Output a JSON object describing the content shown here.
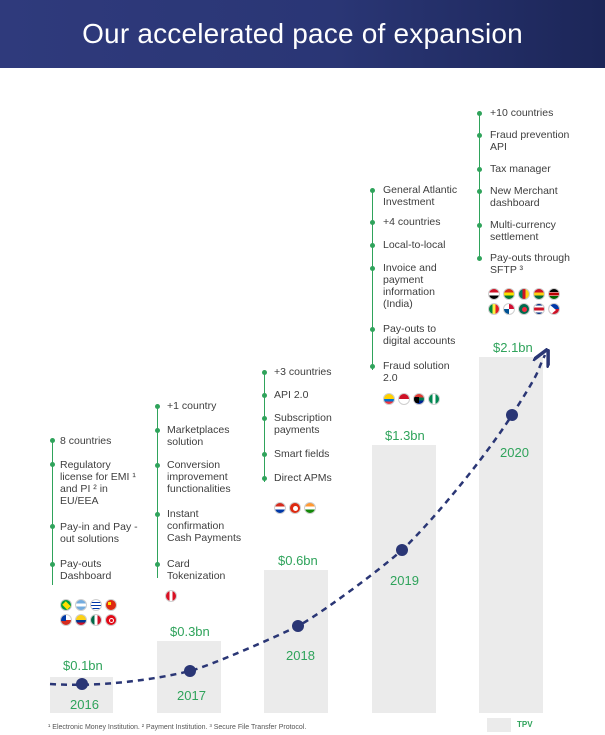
{
  "header": {
    "title": "Our accelerated pace of expansion"
  },
  "chart_data": {
    "type": "bar",
    "categories": [
      "2016",
      "2017",
      "2018",
      "2019",
      "2020"
    ],
    "values": [
      0.1,
      0.3,
      0.6,
      1.3,
      2.1
    ],
    "value_labels": [
      "$0.1bn",
      "$0.3bn",
      "$0.6bn",
      "$1.3bn",
      "$2.1bn"
    ],
    "series": [
      {
        "name": "TPV",
        "values": [
          0.1,
          0.3,
          0.6,
          1.3,
          2.1
        ]
      }
    ],
    "ylim": [
      0,
      2.1
    ],
    "trend_line": "dashed-arrow",
    "legend_position": "bottom-right",
    "colors": {
      "bar": "#ebebeb",
      "accent": "#2fa35b",
      "curve": "#2a3675"
    }
  },
  "milestones": [
    {
      "items": [
        "8 countries",
        "Regulatory license for EMI ¹ and PI ² in EU/EEA",
        "Pay-in and Pay - out solutions",
        "Pay-outs Dashboard"
      ],
      "flags": [
        "Brazil",
        "Argentina",
        "Uruguay",
        "China",
        "Chile",
        "Colombia",
        "Mexico",
        "Turkey"
      ]
    },
    {
      "items": [
        "+1 country",
        "Marketplaces solution",
        "Conversion improvement functionalities",
        "Instant confirmation Cash Payments",
        "Card Tokenization"
      ],
      "flags": [
        "Peru"
      ]
    },
    {
      "items": [
        "+3 countries",
        "API 2.0",
        "Subscription payments",
        "Smart fields",
        "Direct APMs"
      ],
      "flags": [
        "Paraguay",
        "Hong Kong",
        "India"
      ]
    },
    {
      "items": [
        "General Atlantic Investment",
        "+4 countries",
        "Local-to-local",
        "Invoice and payment information (India)",
        "Pay-outs to digital accounts",
        "Fraud solution 2.0"
      ],
      "flags": [
        "Ecuador",
        "Indonesia",
        "South Africa",
        "Nigeria"
      ]
    },
    {
      "items": [
        "+10 countries",
        "Fraud prevention API",
        "Tax manager",
        "New Merchant dashboard",
        "Multi-currency settlement",
        "Pay-outs through SFTP ³"
      ],
      "flags": [
        "Egypt",
        "Bolivia",
        "Cameroon",
        "Ghana",
        "Kenya",
        "Senegal",
        "Panama",
        "Bangladesh",
        "Costa Rica",
        "Philippines"
      ]
    }
  ],
  "footnote": "¹ Electronic Money Institution. ² Payment Institution. ³ Secure File Transfer Protocol.",
  "legend": {
    "label": "TPV"
  }
}
